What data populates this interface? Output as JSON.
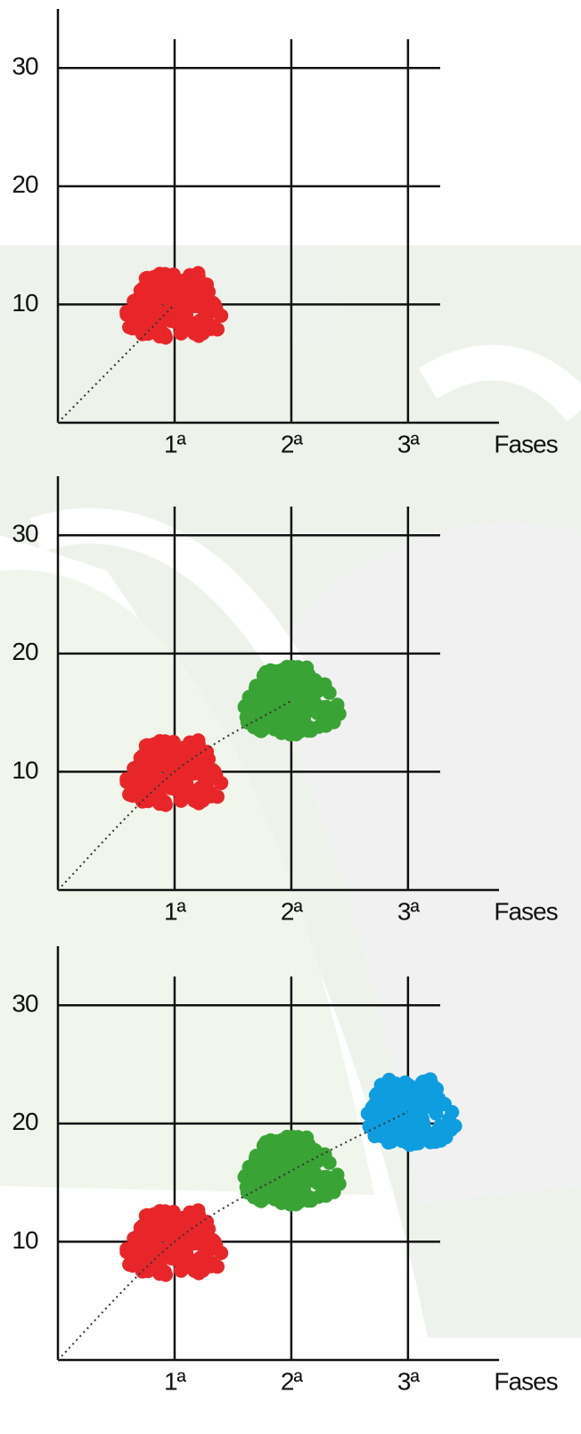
{
  "chart_data": [
    {
      "type": "scatter",
      "xlabel": "Fases",
      "xlim": [
        0,
        3.78
      ],
      "ylim": [
        0,
        35
      ],
      "xticks": [
        {
          "value": 1,
          "label": "1ª"
        },
        {
          "value": 2,
          "label": "2ª"
        },
        {
          "value": 3,
          "label": "3ª"
        }
      ],
      "yticks": [
        10,
        20,
        30
      ],
      "series": [
        {
          "color": "#e8262a",
          "x": [
            1
          ],
          "values": [
            10
          ]
        }
      ]
    },
    {
      "type": "scatter",
      "xlabel": "Fases",
      "xlim": [
        0,
        3.78
      ],
      "ylim": [
        0,
        35
      ],
      "xticks": [
        {
          "value": 1,
          "label": "1ª"
        },
        {
          "value": 2,
          "label": "2ª"
        },
        {
          "value": 3,
          "label": "3ª"
        }
      ],
      "yticks": [
        10,
        20,
        30
      ],
      "series": [
        {
          "color": "#e8262a",
          "x": [
            1
          ],
          "values": [
            10
          ]
        },
        {
          "color": "#3aa335",
          "x": [
            2
          ],
          "values": [
            16
          ]
        }
      ]
    },
    {
      "type": "scatter",
      "xlabel": "Fases",
      "xlim": [
        0,
        3.78
      ],
      "ylim": [
        0,
        35
      ],
      "xticks": [
        {
          "value": 1,
          "label": "1ª"
        },
        {
          "value": 2,
          "label": "2ª"
        },
        {
          "value": 3,
          "label": "3ª"
        }
      ],
      "yticks": [
        10,
        20,
        30
      ],
      "series": [
        {
          "color": "#e8262a",
          "x": [
            1
          ],
          "values": [
            10
          ]
        },
        {
          "color": "#3aa335",
          "x": [
            2
          ],
          "values": [
            16
          ]
        },
        {
          "color": "#0e9ee0",
          "x": [
            3
          ],
          "values": [
            21
          ]
        }
      ]
    }
  ]
}
